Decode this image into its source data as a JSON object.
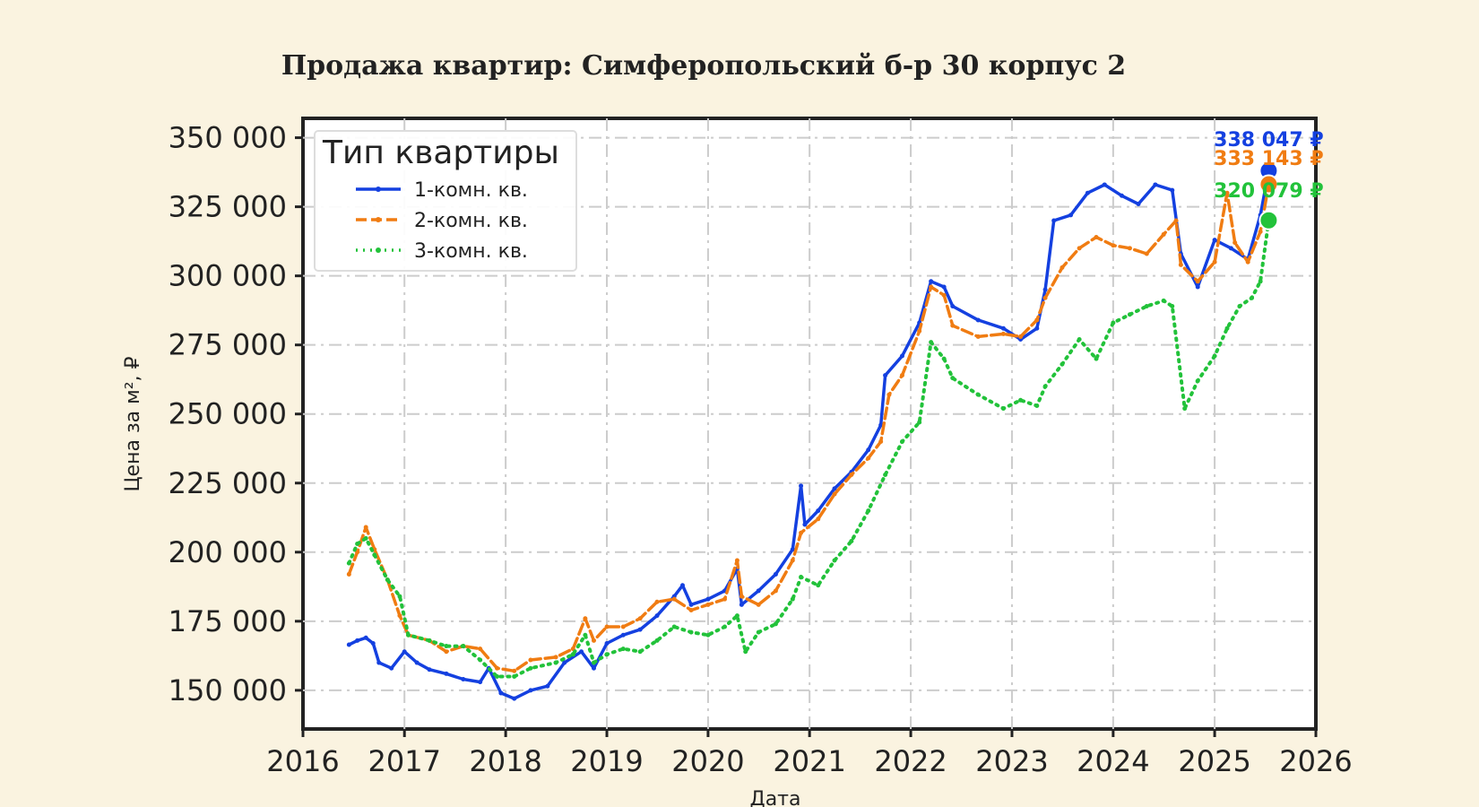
{
  "chart_data": {
    "type": "line",
    "title": "Продажа квартир: Симферопольский б-р 30 корпус 2",
    "xlabel": "Дата",
    "ylabel": "Цена за м², ₽",
    "xlim": [
      "2016-01-01",
      "2026-01-01"
    ],
    "ylim": [
      136000,
      357000
    ],
    "x_ticks": [
      "2016",
      "2017",
      "2018",
      "2019",
      "2020",
      "2021",
      "2022",
      "2023",
      "2024",
      "2025",
      "2026"
    ],
    "y_ticks": [
      150000,
      175000,
      200000,
      225000,
      250000,
      275000,
      300000,
      325000,
      350000
    ],
    "y_tick_labels": [
      "150 000",
      "175 000",
      "200 000",
      "225 000",
      "250 000",
      "275 000",
      "300 000",
      "325 000",
      "350 000"
    ],
    "grid": true,
    "legend": {
      "title": "Тип квартиры",
      "position": "top-left"
    },
    "series": [
      {
        "name": "1-комн. кв.",
        "color": "#1440e0",
        "line_style": "solid",
        "end_label": "338 047 ₽",
        "end_value": 338047,
        "points": [
          [
            "2016-06-15",
            166500
          ],
          [
            "2016-07-15",
            168000
          ],
          [
            "2016-08-15",
            169000
          ],
          [
            "2016-09-10",
            167000
          ],
          [
            "2016-10-01",
            160000
          ],
          [
            "2016-11-15",
            158000
          ],
          [
            "2017-01-01",
            164000
          ],
          [
            "2017-02-15",
            160000
          ],
          [
            "2017-04-01",
            157500
          ],
          [
            "2017-06-01",
            156000
          ],
          [
            "2017-08-01",
            154000
          ],
          [
            "2017-10-01",
            153000
          ],
          [
            "2017-11-01",
            158000
          ],
          [
            "2017-12-15",
            149000
          ],
          [
            "2018-02-01",
            147000
          ],
          [
            "2018-04-01",
            150000
          ],
          [
            "2018-06-01",
            151500
          ],
          [
            "2018-08-01",
            160000
          ],
          [
            "2018-10-01",
            164000
          ],
          [
            "2018-11-15",
            158000
          ],
          [
            "2019-01-01",
            167000
          ],
          [
            "2019-03-01",
            170000
          ],
          [
            "2019-05-01",
            172000
          ],
          [
            "2019-07-01",
            177000
          ],
          [
            "2019-09-01",
            184000
          ],
          [
            "2019-10-01",
            188000
          ],
          [
            "2019-11-01",
            181000
          ],
          [
            "2020-01-01",
            183000
          ],
          [
            "2020-03-01",
            186000
          ],
          [
            "2020-04-15",
            194000
          ],
          [
            "2020-05-01",
            181000
          ],
          [
            "2020-07-01",
            186000
          ],
          [
            "2020-09-01",
            192000
          ],
          [
            "2020-11-01",
            201000
          ],
          [
            "2020-12-01",
            224000
          ],
          [
            "2020-12-15",
            210000
          ],
          [
            "2021-02-01",
            215000
          ],
          [
            "2021-04-01",
            223000
          ],
          [
            "2021-06-01",
            229000
          ],
          [
            "2021-08-01",
            237000
          ],
          [
            "2021-09-15",
            246000
          ],
          [
            "2021-10-01",
            264000
          ],
          [
            "2021-12-01",
            271000
          ],
          [
            "2022-02-01",
            283000
          ],
          [
            "2022-03-15",
            298000
          ],
          [
            "2022-05-01",
            296000
          ],
          [
            "2022-06-01",
            289000
          ],
          [
            "2022-09-01",
            284000
          ],
          [
            "2022-12-01",
            281000
          ],
          [
            "2023-02-01",
            277000
          ],
          [
            "2023-04-01",
            281000
          ],
          [
            "2023-05-01",
            295000
          ],
          [
            "2023-06-01",
            320000
          ],
          [
            "2023-08-01",
            322000
          ],
          [
            "2023-10-01",
            330000
          ],
          [
            "2023-12-01",
            333000
          ],
          [
            "2024-02-01",
            329000
          ],
          [
            "2024-04-01",
            326000
          ],
          [
            "2024-06-01",
            333000
          ],
          [
            "2024-08-01",
            331000
          ],
          [
            "2024-09-01",
            308000
          ],
          [
            "2024-11-01",
            296000
          ],
          [
            "2025-01-01",
            313000
          ],
          [
            "2025-03-01",
            310000
          ],
          [
            "2025-05-01",
            306000
          ],
          [
            "2025-06-15",
            322000
          ],
          [
            "2025-07-15",
            338047
          ]
        ]
      },
      {
        "name": "2-комн. кв.",
        "color": "#f07c12",
        "line_style": "dashed",
        "end_label": "333 143 ₽",
        "end_value": 333143,
        "points": [
          [
            "2016-06-15",
            192000
          ],
          [
            "2016-07-15",
            200000
          ],
          [
            "2016-08-15",
            209000
          ],
          [
            "2016-09-15",
            201000
          ],
          [
            "2016-11-01",
            190000
          ],
          [
            "2016-12-15",
            177000
          ],
          [
            "2017-01-15",
            170000
          ],
          [
            "2017-04-01",
            168000
          ],
          [
            "2017-06-01",
            164000
          ],
          [
            "2017-08-01",
            166000
          ],
          [
            "2017-10-01",
            165000
          ],
          [
            "2017-12-01",
            158000
          ],
          [
            "2018-02-01",
            157000
          ],
          [
            "2018-04-01",
            161000
          ],
          [
            "2018-07-01",
            162000
          ],
          [
            "2018-09-01",
            165000
          ],
          [
            "2018-10-15",
            176000
          ],
          [
            "2018-11-15",
            168000
          ],
          [
            "2019-01-01",
            173000
          ],
          [
            "2019-03-01",
            173000
          ],
          [
            "2019-05-01",
            176000
          ],
          [
            "2019-07-01",
            182000
          ],
          [
            "2019-09-01",
            183000
          ],
          [
            "2019-11-01",
            179000
          ],
          [
            "2020-01-01",
            181000
          ],
          [
            "2020-03-01",
            183000
          ],
          [
            "2020-04-15",
            197000
          ],
          [
            "2020-05-01",
            184000
          ],
          [
            "2020-07-01",
            181000
          ],
          [
            "2020-09-01",
            186000
          ],
          [
            "2020-11-01",
            197000
          ],
          [
            "2020-12-01",
            207000
          ],
          [
            "2021-02-01",
            212000
          ],
          [
            "2021-04-01",
            221000
          ],
          [
            "2021-06-01",
            228000
          ],
          [
            "2021-08-01",
            234000
          ],
          [
            "2021-09-15",
            240000
          ],
          [
            "2021-10-15",
            257000
          ],
          [
            "2021-12-01",
            264000
          ],
          [
            "2022-02-01",
            280000
          ],
          [
            "2022-03-15",
            296000
          ],
          [
            "2022-05-01",
            293000
          ],
          [
            "2022-06-01",
            282000
          ],
          [
            "2022-09-01",
            278000
          ],
          [
            "2022-12-01",
            279000
          ],
          [
            "2023-02-01",
            278000
          ],
          [
            "2023-04-01",
            284000
          ],
          [
            "2023-05-01",
            292000
          ],
          [
            "2023-07-01",
            303000
          ],
          [
            "2023-09-01",
            310000
          ],
          [
            "2023-11-01",
            314000
          ],
          [
            "2024-01-01",
            311000
          ],
          [
            "2024-03-01",
            310000
          ],
          [
            "2024-05-01",
            308000
          ],
          [
            "2024-07-01",
            315000
          ],
          [
            "2024-08-15",
            320000
          ],
          [
            "2024-09-01",
            304000
          ],
          [
            "2024-11-01",
            298000
          ],
          [
            "2025-01-01",
            305000
          ],
          [
            "2025-02-15",
            330000
          ],
          [
            "2025-03-15",
            312000
          ],
          [
            "2025-05-01",
            305000
          ],
          [
            "2025-06-15",
            316000
          ],
          [
            "2025-07-15",
            333143
          ]
        ]
      },
      {
        "name": "3-комн. кв.",
        "color": "#22c23a",
        "line_style": "dotted",
        "end_label": "320 079 ₽",
        "end_value": 320079,
        "points": [
          [
            "2016-06-15",
            196000
          ],
          [
            "2016-07-15",
            203000
          ],
          [
            "2016-08-15",
            205000
          ],
          [
            "2016-09-15",
            199000
          ],
          [
            "2016-11-01",
            190000
          ],
          [
            "2016-12-15",
            184000
          ],
          [
            "2017-01-15",
            170000
          ],
          [
            "2017-04-01",
            168000
          ],
          [
            "2017-06-01",
            166000
          ],
          [
            "2017-08-01",
            166000
          ],
          [
            "2017-10-01",
            161000
          ],
          [
            "2017-12-01",
            155000
          ],
          [
            "2018-02-01",
            155000
          ],
          [
            "2018-04-01",
            158000
          ],
          [
            "2018-07-01",
            160000
          ],
          [
            "2018-09-01",
            163000
          ],
          [
            "2018-10-15",
            170000
          ],
          [
            "2018-11-15",
            160000
          ],
          [
            "2019-01-01",
            163000
          ],
          [
            "2019-03-01",
            165000
          ],
          [
            "2019-05-01",
            164000
          ],
          [
            "2019-07-01",
            168000
          ],
          [
            "2019-09-01",
            173000
          ],
          [
            "2019-11-01",
            171000
          ],
          [
            "2020-01-01",
            170000
          ],
          [
            "2020-03-01",
            173000
          ],
          [
            "2020-04-15",
            177000
          ],
          [
            "2020-05-15",
            164000
          ],
          [
            "2020-07-01",
            171000
          ],
          [
            "2020-09-01",
            174000
          ],
          [
            "2020-11-01",
            183000
          ],
          [
            "2020-12-01",
            191000
          ],
          [
            "2021-02-01",
            188000
          ],
          [
            "2021-04-01",
            197000
          ],
          [
            "2021-06-01",
            204000
          ],
          [
            "2021-08-01",
            215000
          ],
          [
            "2021-10-01",
            228000
          ],
          [
            "2021-12-01",
            240000
          ],
          [
            "2022-02-01",
            247000
          ],
          [
            "2022-03-15",
            276000
          ],
          [
            "2022-05-01",
            270000
          ],
          [
            "2022-06-01",
            263000
          ],
          [
            "2022-09-01",
            257000
          ],
          [
            "2022-12-01",
            252000
          ],
          [
            "2023-02-01",
            255000
          ],
          [
            "2023-04-01",
            253000
          ],
          [
            "2023-05-01",
            260000
          ],
          [
            "2023-07-01",
            268000
          ],
          [
            "2023-09-01",
            277000
          ],
          [
            "2023-11-01",
            270000
          ],
          [
            "2024-01-01",
            283000
          ],
          [
            "2024-03-01",
            286000
          ],
          [
            "2024-05-01",
            289000
          ],
          [
            "2024-07-01",
            291000
          ],
          [
            "2024-08-01",
            289000
          ],
          [
            "2024-09-15",
            252000
          ],
          [
            "2024-11-01",
            262000
          ],
          [
            "2025-01-01",
            271000
          ],
          [
            "2025-02-15",
            281000
          ],
          [
            "2025-04-01",
            289000
          ],
          [
            "2025-05-15",
            292000
          ],
          [
            "2025-06-15",
            298000
          ],
          [
            "2025-07-15",
            320079
          ]
        ]
      }
    ]
  }
}
